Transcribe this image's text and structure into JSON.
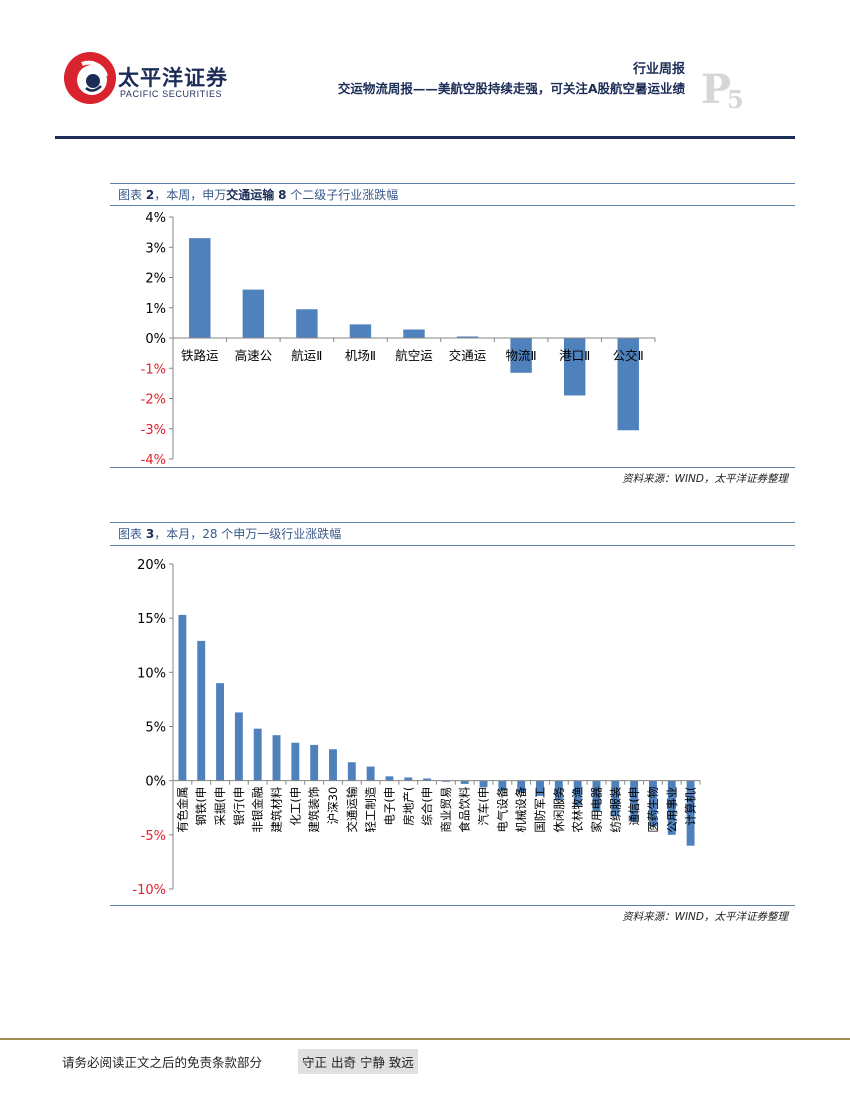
{
  "header": {
    "brand_cn": "太平洋证券",
    "brand_en": "PACIFIC SECURITIES",
    "report_type": "行业周报",
    "report_title": "交运物流周报——美航空股持续走强，可关注A股航空暑运业绩",
    "page_letter": "P",
    "page_number": "5"
  },
  "figures": [
    {
      "caption_prefix": "图表",
      "caption_num": "2",
      "caption_mid": "，本周，申万",
      "caption_bold": "交通运输",
      "caption_num2": "8",
      "caption_rest": "个二级子行业涨跌幅",
      "source": "资料来源：WIND，太平洋证券整理"
    },
    {
      "caption_prefix": "图表",
      "caption_num": "3",
      "caption_mid": "，本月，28 个申万一级行业涨跌幅",
      "source": "资料来源：WIND，太平洋证券整理"
    }
  ],
  "chart_data": [
    {
      "type": "bar",
      "title": "本周，申万交通运输8个二级子行业涨跌幅",
      "categories": [
        "铁路运",
        "高速公",
        "航运Ⅱ",
        "机场Ⅱ",
        "航空运",
        "交通运",
        "物流Ⅱ",
        "港口Ⅱ",
        "公交Ⅱ"
      ],
      "values": [
        3.3,
        1.6,
        0.95,
        0.45,
        0.28,
        0.05,
        -1.15,
        -1.9,
        -3.05
      ],
      "ylim": [
        -4,
        4
      ],
      "yticks": [
        4,
        3,
        2,
        1,
        0,
        -1,
        -2,
        -3,
        -4
      ],
      "ytick_labels": [
        "4%",
        "3%",
        "2%",
        "1%",
        "0%",
        "-1%",
        "-2%",
        "-3%",
        "-4%"
      ],
      "bar_color": "#4f81bd",
      "negative_label_color": "#e0202a"
    },
    {
      "type": "bar",
      "title": "本月，28 个申万一级行业涨跌幅",
      "categories": [
        "有色金属",
        "钢铁(申",
        "采掘(申",
        "银行(申",
        "非银金融",
        "建筑材料",
        "化工(申",
        "建筑装饰",
        "沪深30",
        "交通运输",
        "轻工制造",
        "电子(申",
        "房地产(",
        "综合(申",
        "商业贸易",
        "食品饮料",
        "汽车(申",
        "电气设备",
        "机械设备",
        "国防军工",
        "休闲服务",
        "农林牧渔",
        "家用电器",
        "纺织服装",
        "通信(申",
        "医药生物",
        "公用事业",
        "计算机("
      ],
      "values": [
        15.3,
        12.9,
        9.0,
        6.3,
        4.8,
        4.2,
        3.5,
        3.3,
        2.9,
        1.7,
        1.3,
        0.4,
        0.3,
        0.2,
        -0.1,
        -0.3,
        -0.6,
        -0.9,
        -1.1,
        -1.4,
        -1.8,
        -2.3,
        -2.8,
        -3.3,
        -3.8,
        -4.2,
        -5.0,
        -6.0
      ],
      "ylim": [
        -10,
        20
      ],
      "yticks": [
        20,
        15,
        10,
        5,
        0,
        -5,
        -10
      ],
      "ytick_labels": [
        "20%",
        "15%",
        "10%",
        "5%",
        "0%",
        "-5%",
        "-10%"
      ],
      "bar_color": "#4f81bd",
      "negative_label_color": "#e0202a"
    }
  ],
  "footer": {
    "disclaimer": "请务必阅读正文之后的免责条款部分",
    "motto": "守正 出奇 宁静 致远"
  }
}
